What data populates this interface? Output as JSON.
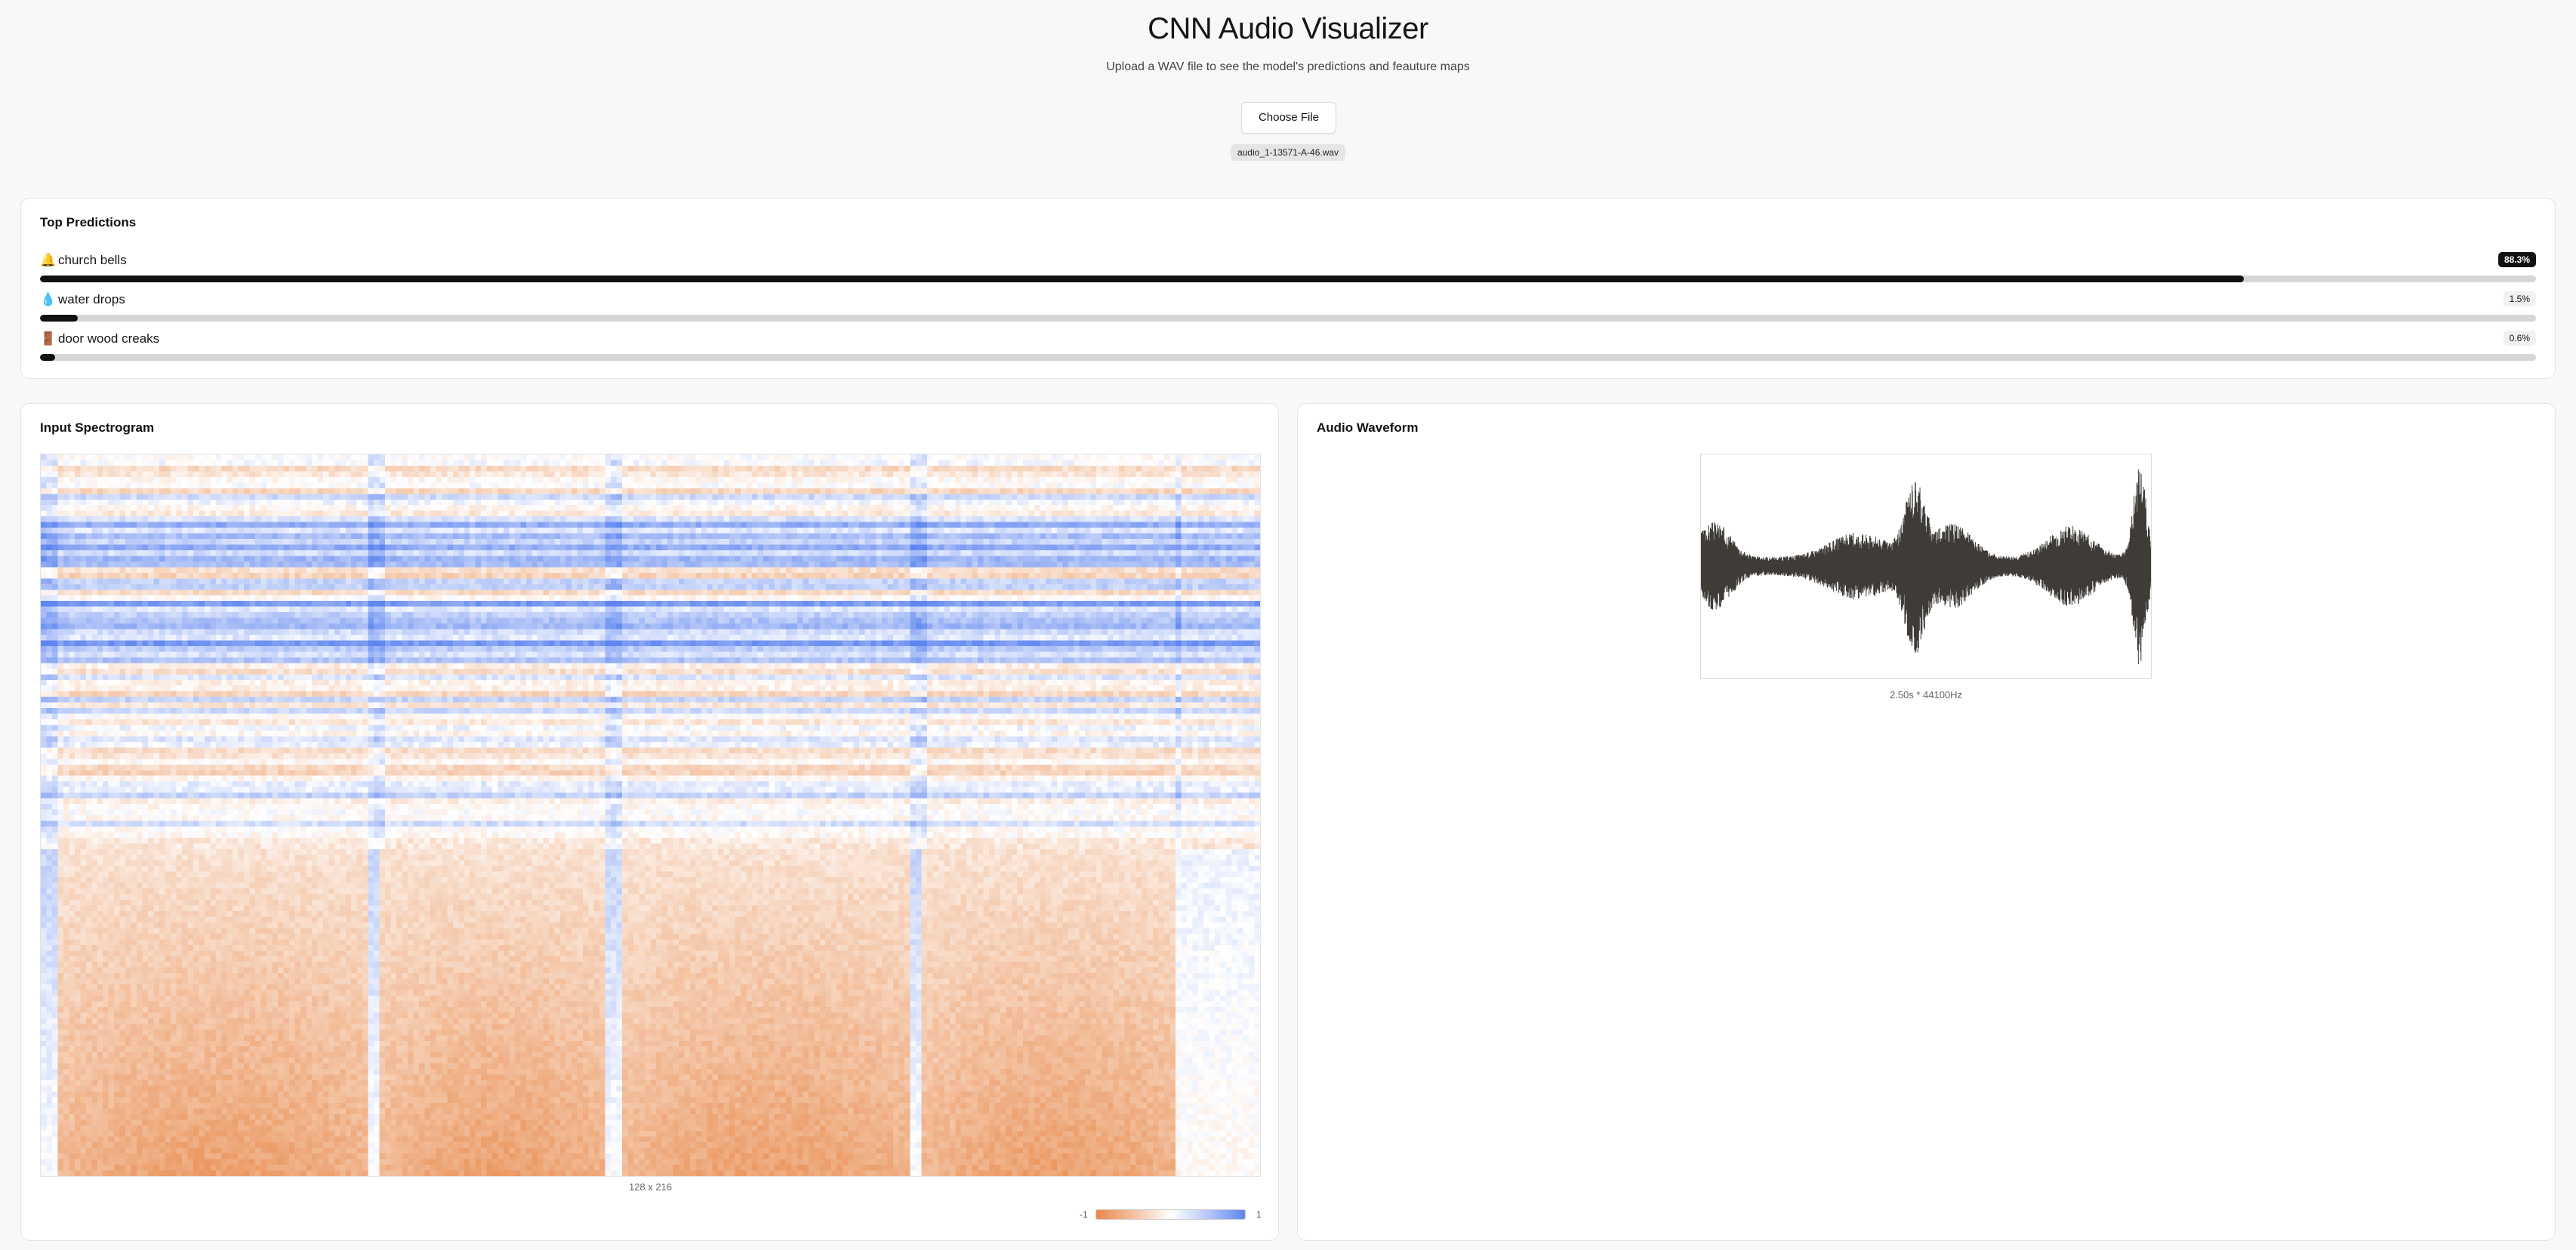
{
  "page": {
    "title": "CNN Audio Visualizer",
    "subtitle": "Upload a WAV file to see the model's predictions and feauture maps",
    "choose_file_label": "Choose File",
    "file_name": "audio_1-13571-A-46.wav"
  },
  "predictions": {
    "title": "Top Predictions",
    "items": [
      {
        "emoji": "🔔",
        "label": "church bells",
        "percent_text": "88.3%",
        "value": 0.883
      },
      {
        "emoji": "💧",
        "label": "water drops",
        "percent_text": "1.5%",
        "value": 0.015
      },
      {
        "emoji": "🚪",
        "label": "door wood creaks",
        "percent_text": "0.6%",
        "value": 0.006
      }
    ]
  },
  "spectrogram": {
    "title": "Input Spectrogram",
    "dims_caption": "128 x 216",
    "legend_min": "-1",
    "legend_max": "1",
    "color_low": "#e8894a",
    "color_mid": "#ffffff",
    "color_high": "#5f86f0"
  },
  "waveform": {
    "title": "Audio Waveform",
    "caption": "2.50s * 44100Hz",
    "color": "#3f3c38"
  }
}
